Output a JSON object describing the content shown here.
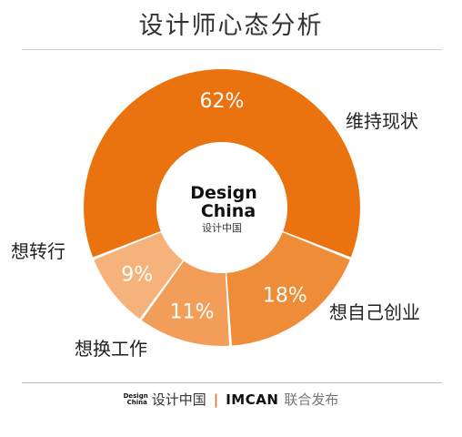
{
  "title": "设计师心态分析",
  "center_logo": {
    "line1": "Design",
    "line2": "China",
    "sub": "设计中国"
  },
  "footer": {
    "logo_line1": "Design",
    "logo_line2": "China",
    "site": "设计中国",
    "separator": "|",
    "partner": "IMCAN",
    "publish": "联合发布"
  },
  "colors": {
    "slice1": "#ea720f",
    "slice2": "#ef8c37",
    "slice3": "#f29e58",
    "slice4": "#f5b27a"
  },
  "chart_data": {
    "type": "pie",
    "donut": true,
    "title": "设计师心态分析",
    "slices": [
      {
        "label": "维持现状",
        "value": 62,
        "value_label": "62%"
      },
      {
        "label": "想自己创业",
        "value": 18,
        "value_label": "18%"
      },
      {
        "label": "想换工作",
        "value": 11,
        "value_label": "11%"
      },
      {
        "label": "想转行",
        "value": 9,
        "value_label": "9%"
      }
    ]
  }
}
